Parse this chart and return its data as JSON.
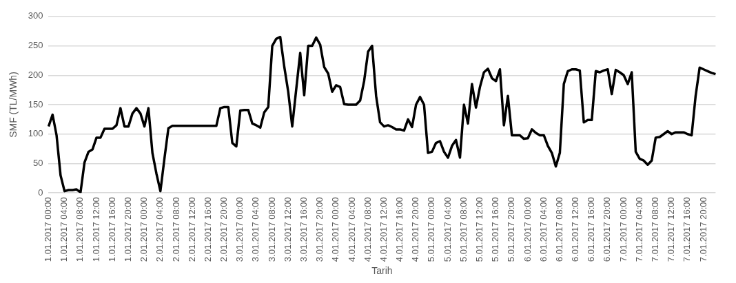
{
  "chart_data": {
    "type": "line",
    "xlabel": "Tarih",
    "ylabel": "SMF (TL/MWh)",
    "categories": [
      "1.01.2017 00:00",
      null,
      null,
      null,
      "1.01.2017 04:00",
      null,
      null,
      null,
      "1.01.2017 08:00",
      null,
      null,
      null,
      "1.01.2017 12:00",
      null,
      null,
      null,
      "1.01.2017 16:00",
      null,
      null,
      null,
      "1.01.2017 20:00",
      null,
      null,
      null,
      "2.01.2017 00:00",
      null,
      null,
      null,
      "2.01.2017 04:00",
      null,
      null,
      null,
      "2.01.2017 08:00",
      null,
      null,
      null,
      "2.01.2017 12:00",
      null,
      null,
      null,
      "2.01.2017 16:00",
      null,
      null,
      null,
      "2.01.2017 20:00",
      null,
      null,
      null,
      "3.01.2017 00:00",
      null,
      null,
      null,
      "3.01.2017 04:00",
      null,
      null,
      null,
      "3.01.2017 08:00",
      null,
      null,
      null,
      "3.01.2017 12:00",
      null,
      null,
      null,
      "3.01.2017 16:00",
      null,
      null,
      null,
      "3.01.2017 20:00",
      null,
      null,
      null,
      "4.01.2017 00:00",
      null,
      null,
      null,
      "4.01.2017 04:00",
      null,
      null,
      null,
      "4.01.2017 08:00",
      null,
      null,
      null,
      "4.01.2017 12:00",
      null,
      null,
      null,
      "4.01.2017 16:00",
      null,
      null,
      null,
      "4.01.2017 20:00",
      null,
      null,
      null,
      "5.01.2017 00:00",
      null,
      null,
      null,
      "5.01.2017 04:00",
      null,
      null,
      null,
      "5.01.2017 08:00",
      null,
      null,
      null,
      "5.01.2017 12:00",
      null,
      null,
      null,
      "5.01.2017 16:00",
      null,
      null,
      null,
      "5.01.2017 20:00",
      null,
      null,
      null,
      "6.01.2017 00:00",
      null,
      null,
      null,
      "6.01.2017 04:00",
      null,
      null,
      null,
      "6.01.2017 08:00",
      null,
      null,
      null,
      "6.01.2017 12:00",
      null,
      null,
      null,
      "6.01.2017 16:00",
      null,
      null,
      null,
      "6.01.2017 20:00",
      null,
      null,
      null,
      "7.01.2017 00:00",
      null,
      null,
      null,
      "7.01.2017 04:00",
      null,
      null,
      null,
      "7.01.2017 08:00",
      null,
      null,
      null,
      "7.01.2017 12:00",
      null,
      null,
      null,
      "7.01.2017 16:00",
      null,
      null,
      null,
      "7.01.2017 20:00",
      null,
      null,
      null
    ],
    "series": [
      {
        "color": "#000000",
        "values": [
          113,
          133,
          98,
          30,
          3,
          5,
          5,
          6,
          1,
          52,
          70,
          74,
          94,
          94,
          109,
          109,
          109,
          115,
          144,
          113,
          113,
          135,
          144,
          135,
          113,
          144,
          68,
          33,
          3,
          58,
          110,
          114,
          114,
          114,
          114,
          114,
          114,
          114,
          114,
          114,
          114,
          114,
          114,
          144,
          146,
          146,
          85,
          79,
          140,
          141,
          141,
          118,
          115,
          111,
          137,
          146,
          250,
          262,
          265,
          215,
          172,
          113,
          176,
          238,
          166,
          250,
          250,
          264,
          252,
          214,
          203,
          172,
          183,
          180,
          151,
          150,
          150,
          150,
          157,
          190,
          240,
          250,
          165,
          120,
          113,
          115,
          112,
          108,
          108,
          106,
          125,
          112,
          150,
          163,
          150,
          68,
          70,
          85,
          88,
          70,
          60,
          80,
          90,
          60,
          150,
          118,
          185,
          145,
          180,
          205,
          211,
          195,
          190,
          210,
          115,
          165,
          98,
          98,
          98,
          92,
          93,
          108,
          102,
          98,
          98,
          80,
          68,
          45,
          68,
          185,
          207,
          210,
          210,
          208,
          120,
          124,
          124,
          207,
          205,
          208,
          210,
          168,
          209,
          205,
          200,
          185,
          205,
          70,
          58,
          55,
          48,
          55,
          94,
          95,
          100,
          105,
          100,
          103,
          103,
          103,
          100,
          98,
          165,
          213,
          210,
          207,
          204,
          202
        ]
      }
    ],
    "ylim": [
      0,
      300
    ],
    "yticks": [
      0,
      50,
      100,
      150,
      200,
      250,
      300
    ],
    "grid": "y",
    "legend": false,
    "marker": "none",
    "line_style": "solid"
  }
}
